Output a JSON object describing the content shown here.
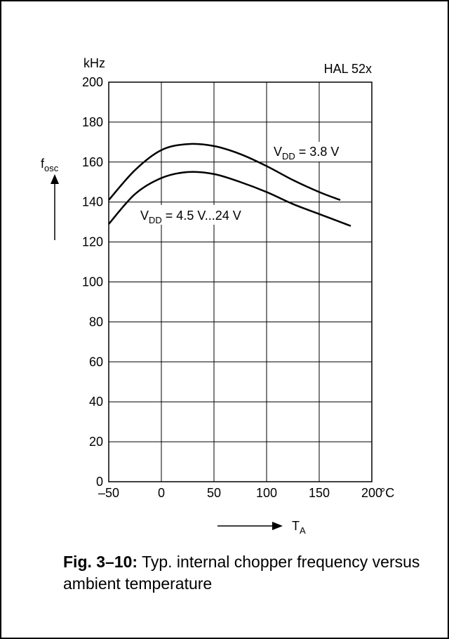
{
  "chart_data": {
    "type": "line",
    "title": "HAL 52x",
    "ylabel": "f",
    "ylabel_sub": "osc",
    "y_unit": "kHz",
    "xlabel": "T",
    "xlabel_sub": "A",
    "x_unit": "°C",
    "xlim": [
      -50,
      200
    ],
    "ylim": [
      0,
      200
    ],
    "x_ticks": [
      "–50",
      "0",
      "50",
      "100",
      "150",
      "200"
    ],
    "y_ticks": [
      "0",
      "20",
      "40",
      "60",
      "80",
      "100",
      "120",
      "140",
      "160",
      "180",
      "200"
    ],
    "grid": true,
    "series": [
      {
        "name_main": "V",
        "name_sub": "DD",
        "name_rest": " = 3.8 V",
        "x": [
          -50,
          -25,
          0,
          25,
          50,
          75,
          100,
          125,
          150,
          170
        ],
        "y": [
          141,
          156,
          166,
          169,
          168,
          164,
          158,
          151,
          145,
          141
        ]
      },
      {
        "name_main": "V",
        "name_sub": "DD",
        "name_rest": " = 4.5 V...24 V",
        "x": [
          -50,
          -25,
          0,
          25,
          50,
          75,
          100,
          125,
          150,
          180
        ],
        "y": [
          129,
          144,
          152,
          155,
          154,
          150,
          145,
          139,
          134,
          128
        ]
      }
    ]
  },
  "caption": {
    "bold": "Fig. 3–10:",
    "text": " Typ. internal chopper frequency versus ambient temperature"
  }
}
